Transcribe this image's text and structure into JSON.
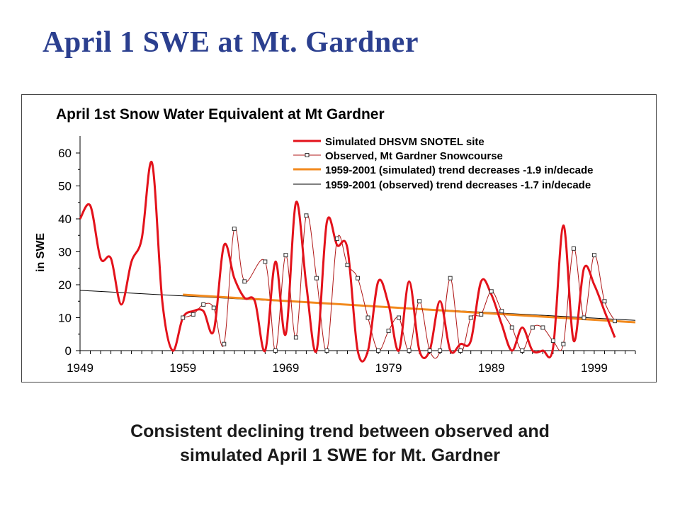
{
  "slide": {
    "title": "April 1 SWE at Mt. Gardner",
    "caption_line1": "Consistent declining trend between observed and",
    "caption_line2": "simulated April 1 SWE for Mt. Gardner"
  },
  "chart_data": {
    "type": "line",
    "title": "April 1st Snow Water Equivalent at Mt Gardner",
    "xlabel": "",
    "ylabel": "in SWE",
    "xlim": [
      1949,
      2003
    ],
    "ylim": [
      0,
      60
    ],
    "x_ticks": [
      1949,
      1959,
      1969,
      1979,
      1989,
      1999
    ],
    "y_ticks": [
      0,
      10,
      20,
      30,
      40,
      50,
      60
    ],
    "grid": false,
    "legend_position": "top-right",
    "colors": {
      "simulated": "#e3121b",
      "observed": "#b01818",
      "sim_trend": "#f28a1e",
      "obs_trend": "#000000"
    },
    "series": [
      {
        "name": "Simulated DHSVM SNOTEL site",
        "style": "thick-red",
        "x": [
          1949,
          1950,
          1951,
          1952,
          1953,
          1954,
          1955,
          1956,
          1957,
          1958,
          1959,
          1960,
          1961,
          1962,
          1963,
          1964,
          1965,
          1966,
          1967,
          1968,
          1969,
          1970,
          1971,
          1972,
          1973,
          1974,
          1975,
          1976,
          1977,
          1978,
          1979,
          1980,
          1981,
          1982,
          1983,
          1984,
          1985,
          1986,
          1987,
          1988,
          1989,
          1990,
          1991,
          1992,
          1993,
          1994,
          1995,
          1996,
          1997,
          1998,
          1999,
          2000,
          2001
        ],
        "y": [
          40,
          44,
          28,
          28,
          14,
          27,
          34,
          57,
          15,
          0,
          10,
          12,
          12,
          6,
          32,
          22,
          16,
          15,
          0,
          27,
          5,
          45,
          20,
          0,
          39,
          32,
          31,
          0,
          0,
          21,
          14,
          0,
          21,
          0,
          0,
          15,
          0,
          2,
          3,
          21,
          17,
          8,
          0,
          7,
          0,
          0,
          1,
          38,
          3,
          25,
          20,
          12,
          4
        ]
      },
      {
        "name": "Observed, Mt Gardner Snowcourse",
        "style": "thin-markers",
        "x": [
          1959,
          1960,
          1961,
          1962,
          1963,
          1964,
          1965,
          1967,
          1968,
          1969,
          1970,
          1971,
          1972,
          1973,
          1974,
          1975,
          1976,
          1977,
          1978,
          1979,
          1980,
          1981,
          1982,
          1983,
          1984,
          1985,
          1986,
          1987,
          1988,
          1989,
          1990,
          1991,
          1992,
          1993,
          1994,
          1995,
          1996,
          1997,
          1998,
          1999,
          2000,
          2001
        ],
        "y": [
          10,
          11,
          14,
          13,
          2,
          37,
          21,
          27,
          0,
          29,
          4,
          41,
          22,
          0,
          34,
          26,
          22,
          10,
          0,
          6,
          10,
          0,
          15,
          0,
          0,
          22,
          0,
          10,
          11,
          18,
          12,
          7,
          0,
          7,
          7,
          3,
          2,
          31,
          10,
          29,
          15,
          9
        ]
      },
      {
        "name": "1959-2001 (simulated) trend decreases -1.9 in/decade",
        "style": "trend-orange",
        "x": [
          1959,
          2003
        ],
        "y": [
          17.0,
          8.6
        ]
      },
      {
        "name": "1959-2001 (observed) trend decreases -1.7 in/decade",
        "style": "trend-black",
        "x": [
          1949,
          2003
        ],
        "y": [
          18.3,
          9.2
        ]
      }
    ]
  }
}
